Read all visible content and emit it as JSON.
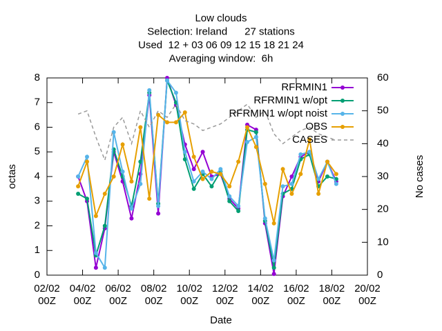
{
  "chart_data": {
    "type": "line",
    "title_lines": [
      "Low clouds",
      "Selection: Ireland      27 stations",
      "Used  12 + 03 06 09 12 15 18 21 24",
      "Averaging window:  6h"
    ],
    "x_label": "Date",
    "y_label": "octas",
    "y2_label": "No cases",
    "x": [
      3.75,
      4.25,
      4.75,
      5.25,
      5.75,
      6.25,
      6.75,
      7.25,
      7.75,
      8.25,
      8.75,
      9.25,
      9.75,
      10.25,
      10.75,
      11.25,
      11.75,
      12.25,
      12.75,
      13.25,
      13.75,
      14.25,
      14.75,
      15.25,
      15.75,
      16.25,
      16.75,
      17.25,
      17.75,
      18.25
    ],
    "xlim": [
      2,
      20
    ],
    "xticks": [
      {
        "value": 2,
        "label": "02/02 00Z"
      },
      {
        "value": 4,
        "label": "04/02 00Z"
      },
      {
        "value": 6,
        "label": "06/02 00Z"
      },
      {
        "value": 8,
        "label": "08/02 00Z"
      },
      {
        "value": 10,
        "label": "10/02 00Z"
      },
      {
        "value": 12,
        "label": "12/02 00Z"
      },
      {
        "value": 14,
        "label": "14/02 00Z"
      },
      {
        "value": 16,
        "label": "16/02 00Z"
      },
      {
        "value": 18,
        "label": "18/02 00Z"
      },
      {
        "value": 20,
        "label": "20/02 00Z"
      }
    ],
    "ylim": [
      0,
      8
    ],
    "yticks": [
      0,
      1,
      2,
      3,
      4,
      5,
      6,
      7,
      8
    ],
    "y2lim": [
      0,
      60
    ],
    "y2ticks": [
      0,
      10,
      20,
      30,
      40,
      50,
      60
    ],
    "legend": "top right",
    "series": [
      {
        "name": "RFRMIN1",
        "color": "#9400d3",
        "marker": true,
        "values": [
          4.0,
          3.0,
          0.3,
          1.9,
          5.0,
          3.8,
          2.3,
          4.1,
          7.3,
          2.5,
          8.0,
          6.9,
          5.3,
          4.3,
          5.0,
          4.0,
          4.1,
          3.1,
          2.7,
          6.1,
          5.9,
          2.1,
          0.05,
          3.2,
          4.0,
          4.8,
          5.0,
          3.8,
          4.6,
          3.8
        ]
      },
      {
        "name": "RFRMIN1 w/opt",
        "color": "#009e73",
        "marker": true,
        "values": [
          3.3,
          3.1,
          0.8,
          2.0,
          5.1,
          4.0,
          2.8,
          4.6,
          7.4,
          2.9,
          7.9,
          7.0,
          4.7,
          3.5,
          4.1,
          3.6,
          4.2,
          3.0,
          2.6,
          5.9,
          5.8,
          2.2,
          0.3,
          3.3,
          3.5,
          4.7,
          4.9,
          3.6,
          4.0,
          3.9
        ]
      },
      {
        "name": "RFRMIN1 w/opt noist",
        "color": "#56b4e9",
        "marker": true,
        "values": [
          4.0,
          4.8,
          0.9,
          0.3,
          5.8,
          4.2,
          2.7,
          3.7,
          7.5,
          2.8,
          7.9,
          7.4,
          5.0,
          3.8,
          4.2,
          3.9,
          4.3,
          3.2,
          2.8,
          5.4,
          5.6,
          2.3,
          0.6,
          3.6,
          3.7,
          4.9,
          5.0,
          3.9,
          4.6,
          3.7
        ]
      },
      {
        "name": "OBS",
        "color": "#e69f00",
        "marker": true,
        "values": [
          3.6,
          4.6,
          2.4,
          3.3,
          4.0,
          5.3,
          3.8,
          6.0,
          3.1,
          6.5,
          6.2,
          6.2,
          6.6,
          4.8,
          3.9,
          4.2,
          4.1,
          3.6,
          4.6,
          6.0,
          5.2,
          3.7,
          2.1,
          4.3,
          3.3,
          4.1,
          5.5,
          3.3,
          4.6,
          4.1
        ]
      },
      {
        "name": "CASES",
        "color": "#999999",
        "marker": false,
        "dashed": true,
        "axis": "y2",
        "values": [
          49,
          50,
          42,
          35,
          45,
          48,
          40,
          50,
          45,
          50,
          48,
          52,
          47,
          46,
          44,
          45,
          46,
          48,
          50,
          52,
          48,
          50,
          43,
          40,
          42,
          44,
          45,
          43,
          42,
          41
        ]
      }
    ]
  }
}
